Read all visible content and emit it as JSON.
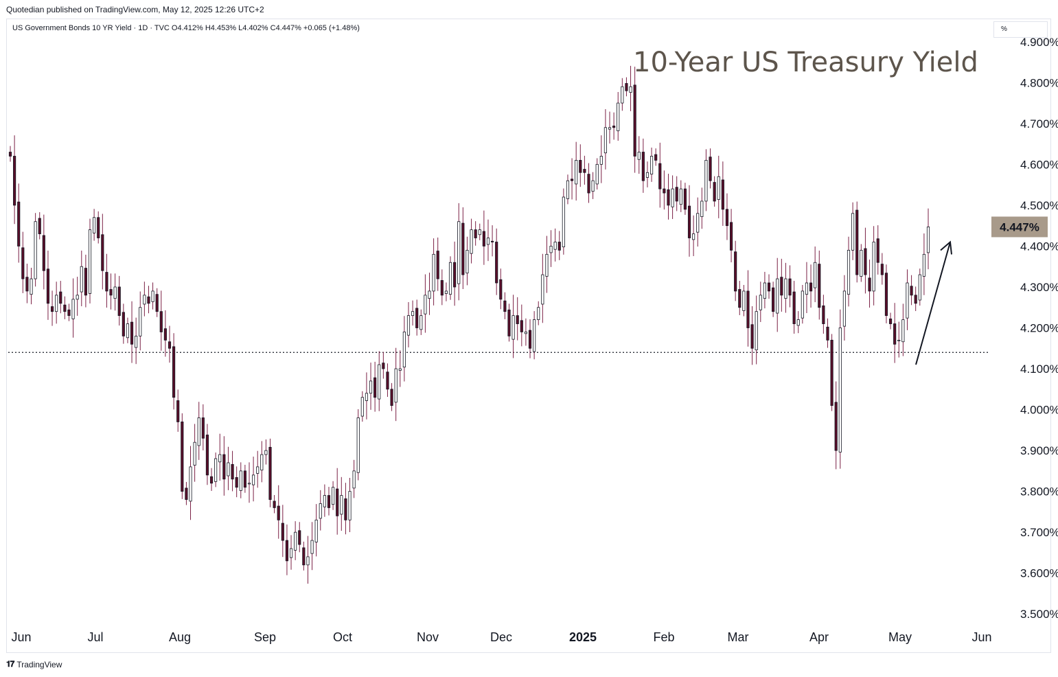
{
  "header": {
    "published": "Quotedian published on TradingView.com, May 12, 2025 12:26 UTC+2"
  },
  "legend": {
    "text": "US Government Bonds 10 YR Yield · 1D · TVC  O4.412%  H4.453%  L4.402%  C4.447%  +0.065 (+1.48%)"
  },
  "unit_selector": {
    "label": "%"
  },
  "footer": {
    "brand": "TradingView",
    "logo": "tradingview-logo-icon"
  },
  "colors": {
    "up_body": "#ffffff",
    "down_body": "#5a0f2a",
    "outline": "#131722",
    "wick": "#7a1f44",
    "title": "#5d554c",
    "last_price_bg": "#a89a8a"
  },
  "chart_data": {
    "type": "candlestick",
    "title": "10-Year US Treasury Yield",
    "ylim": [
      3.45,
      4.95
    ],
    "y_ticks": [
      "3.500%",
      "3.600%",
      "3.700%",
      "3.800%",
      "3.900%",
      "4.000%",
      "4.100%",
      "4.200%",
      "4.300%",
      "4.400%",
      "4.500%",
      "4.600%",
      "4.700%",
      "4.800%",
      "4.900%"
    ],
    "x_ticks": [
      "Jun",
      "Jul",
      "Aug",
      "Sep",
      "Oct",
      "Nov",
      "Dec",
      "2025",
      "Feb",
      "Mar",
      "Apr",
      "May",
      "Jun"
    ],
    "last_price": "4.447%",
    "support_level": 4.14,
    "annotation": "arrow pointing up",
    "series": [
      {
        "close": [
          4.62,
          4.5,
          4.4,
          4.32,
          4.29,
          4.32,
          4.46,
          4.43,
          4.34,
          4.26,
          4.24,
          4.28,
          4.26,
          4.24,
          4.23,
          4.27,
          4.28,
          4.35,
          4.28,
          4.44,
          4.47,
          4.42,
          4.34,
          4.29,
          4.28,
          4.3,
          4.23,
          4.18,
          4.21,
          4.16,
          4.18,
          4.25,
          4.28,
          4.26,
          4.29,
          4.24,
          4.19,
          4.17,
          4.15,
          4.03,
          3.97,
          3.8,
          3.78,
          3.86,
          3.92,
          3.98,
          3.93,
          3.84,
          3.82,
          3.88,
          3.89,
          3.83,
          3.87,
          3.83,
          3.81,
          3.85,
          3.81,
          3.82,
          3.84,
          3.86,
          3.89,
          3.9,
          3.78,
          3.76,
          3.73,
          3.68,
          3.63,
          3.66,
          3.7,
          3.67,
          3.62,
          3.64,
          3.68,
          3.73,
          3.77,
          3.79,
          3.76,
          3.81,
          3.74,
          3.79,
          3.73,
          3.8,
          3.85,
          3.98,
          4.03,
          4.04,
          4.07,
          4.03,
          4.11,
          4.1,
          4.05,
          4.01,
          4.1,
          4.1,
          4.19,
          4.23,
          4.24,
          4.2,
          4.23,
          4.28,
          4.29,
          4.38,
          4.32,
          4.28,
          4.29,
          4.36,
          4.3,
          4.46,
          4.33,
          4.39,
          4.44,
          4.42,
          4.44,
          4.4,
          4.42,
          4.41,
          4.31,
          4.27,
          4.24,
          4.18,
          4.23,
          4.21,
          4.19,
          4.19,
          4.15,
          4.22,
          4.25,
          4.33,
          4.38,
          4.4,
          4.41,
          4.39,
          4.52,
          4.56,
          4.56,
          4.61,
          4.58,
          4.58,
          4.53,
          4.56,
          4.6,
          4.62,
          4.69,
          4.69,
          4.69,
          4.75,
          4.79,
          4.78,
          4.79,
          4.62,
          4.63,
          4.56,
          4.58,
          4.62,
          4.61,
          4.54,
          4.53,
          4.5,
          4.54,
          4.51,
          4.54,
          4.49,
          4.42,
          4.43,
          4.48,
          4.51,
          4.61,
          4.56,
          4.51,
          4.57,
          4.49,
          4.45,
          4.39,
          4.29,
          4.25,
          4.29,
          4.2,
          4.15,
          4.24,
          4.28,
          4.31,
          4.29,
          4.24,
          4.32,
          4.28,
          4.32,
          4.28,
          4.21,
          4.22,
          4.29,
          4.31,
          4.29,
          4.36,
          4.25,
          4.21,
          4.17,
          4.01,
          3.9,
          4.2,
          4.29,
          4.39,
          4.48,
          4.33,
          4.39,
          4.33,
          4.29,
          4.41,
          4.36,
          4.33,
          4.23,
          4.21,
          4.16,
          4.17,
          4.22,
          4.31,
          4.28,
          4.26,
          4.33,
          4.38,
          4.447
        ]
      }
    ]
  }
}
